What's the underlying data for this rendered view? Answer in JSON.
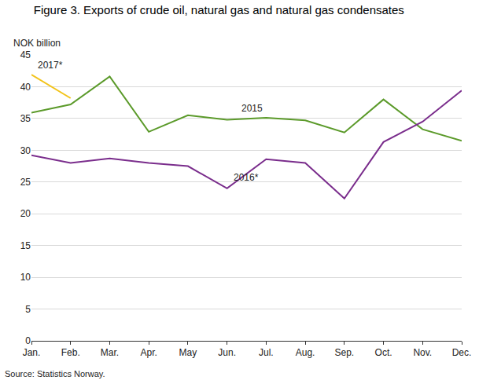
{
  "chart_data": {
    "type": "line",
    "title": "Figure 3. Exports of crude oil, natural gas and natural gas condensates",
    "y_label": "NOK billion",
    "source": "Source: Statistics Norway.",
    "categories": [
      "Jan.",
      "Feb.",
      "Mar.",
      "Apr.",
      "May",
      "Jun.",
      "Jul.",
      "Aug.",
      "Sep.",
      "Oct.",
      "Nov.",
      "Dec."
    ],
    "series": [
      {
        "name": "2015",
        "color": "#5b9a2a",
        "values": [
          35.9,
          37.2,
          41.6,
          32.9,
          35.5,
          34.8,
          35.1,
          34.7,
          32.8,
          38.0,
          33.3,
          31.5
        ]
      },
      {
        "name": "2016*",
        "color": "#7a2d8c",
        "values": [
          29.2,
          28.0,
          28.7,
          28.0,
          27.5,
          24.0,
          28.6,
          28.0,
          22.4,
          31.3,
          34.5,
          39.4
        ]
      },
      {
        "name": "2017*",
        "color": "#f2c319",
        "values": [
          41.9,
          38.2,
          null,
          null,
          null,
          null,
          null,
          null,
          null,
          null,
          null,
          null
        ]
      }
    ],
    "ylim": [
      0,
      45
    ],
    "yticks": [
      0,
      5,
      10,
      15,
      20,
      25,
      30,
      35,
      40,
      45
    ],
    "grid": true
  }
}
